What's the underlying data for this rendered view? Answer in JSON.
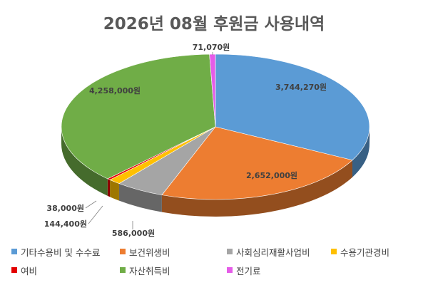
{
  "chart_data": {
    "type": "pie",
    "title": "2026년 08월 후원금 사용내역",
    "slices": [
      {
        "name": "기타수용비 및 수수료",
        "value": 3744270,
        "label": "3,744,270원",
        "color": "#5b9bd5"
      },
      {
        "name": "보건위생비",
        "value": 2652000,
        "label": "2,652,000원",
        "color": "#ed7d31"
      },
      {
        "name": "사회심리재활사업비",
        "value": 586000,
        "label": "586,000원",
        "color": "#a5a5a5"
      },
      {
        "name": "수용기관경비",
        "value": 144400,
        "label": "144,400원",
        "color": "#ffc000"
      },
      {
        "name": "여비",
        "value": 38000,
        "label": "38,000원",
        "color": "#e30000"
      },
      {
        "name": "자산취득비",
        "value": 4258000,
        "label": "4,258,000원",
        "color": "#70ad47"
      },
      {
        "name": "전기료",
        "value": 71070,
        "label": "71,070원",
        "color": "#e55ce8"
      }
    ],
    "legend_position": "bottom",
    "style": "3d"
  }
}
